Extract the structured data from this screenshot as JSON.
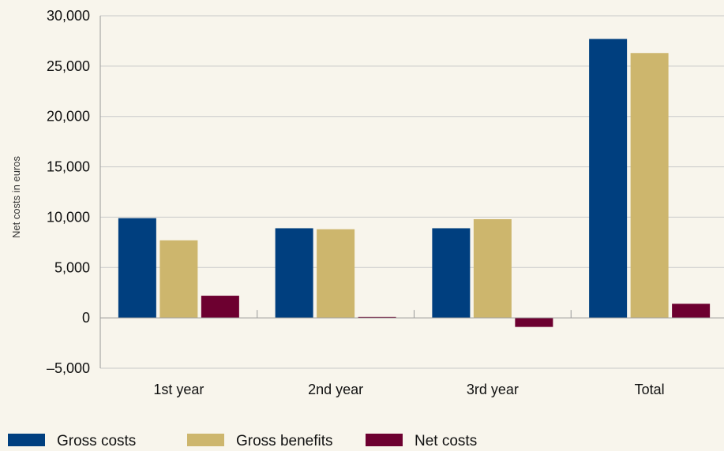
{
  "chart_data": {
    "type": "bar",
    "title": "",
    "xlabel": "",
    "ylabel": "Net costs in euros",
    "categories": [
      "1st year",
      "2nd year",
      "3rd year",
      "Total"
    ],
    "series": [
      {
        "name": "Gross costs",
        "color": "#003f7f",
        "values": [
          9900,
          8900,
          8900,
          27700
        ]
      },
      {
        "name": "Gross benefits",
        "color": "#cdb66d",
        "values": [
          7700,
          8800,
          9800,
          26300
        ]
      },
      {
        "name": "Net costs",
        "color": "#6d0030",
        "values": [
          2200,
          100,
          -900,
          1400
        ]
      }
    ],
    "ylim": [
      -5000,
      30000
    ],
    "yticks": [
      30000,
      25000,
      20000,
      15000,
      10000,
      5000,
      0,
      -5000
    ],
    "ytick_labels": [
      "30,000",
      "25,000",
      "20,000",
      "15,000",
      "10,000",
      "5,000",
      "0",
      "–5,000"
    ],
    "grid": true,
    "legend_position": "bottom"
  }
}
